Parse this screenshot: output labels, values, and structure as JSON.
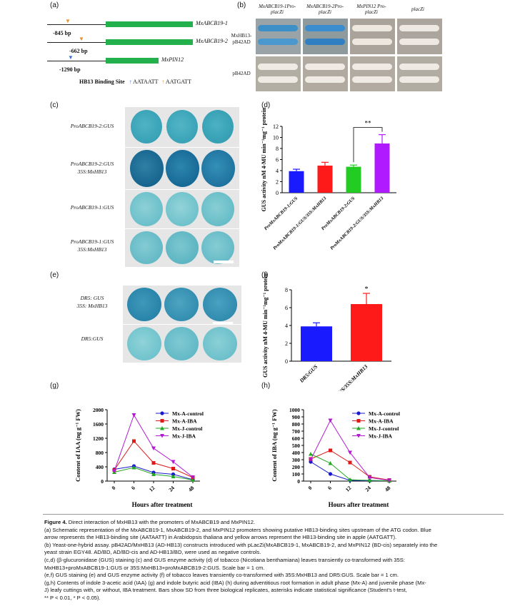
{
  "panel_labels": {
    "a": "(a)",
    "b": "(b)",
    "c": "(c)",
    "d": "(d)",
    "e": "(e)",
    "f": "(f)",
    "g": "(g)",
    "h": "(h)"
  },
  "panel_a": {
    "genes": [
      {
        "name": "MxABCB19-1",
        "position_bp": "-845 bp",
        "site": "AATGATT"
      },
      {
        "name": "MxABCB19-2",
        "position_bp": "-662 bp",
        "site": "AATGATT"
      },
      {
        "name": "MxPIN12",
        "position_bp": "-1290 bp",
        "site": "AATAATT"
      }
    ],
    "legend_title": "HB13 Binding Site",
    "legend_blue": "AATAATT",
    "legend_orange": "AATGATT",
    "colors": {
      "gene_box": "#22b14c",
      "blue_arrow": "#3b6fd4",
      "orange_arrow": "#e8912d"
    }
  },
  "panel_b": {
    "columns": [
      "MxABCB19-1Pro-placZi",
      "MxABCB19-2Pro-placZi",
      "MxPIN12 Pro-placZi",
      "placZi"
    ],
    "column_lines": [
      [
        "MxABCB19-1Pro-",
        "placZi"
      ],
      [
        "MxABCB19-2Pro-",
        "placZi"
      ],
      [
        "MxPIN12 Pro-",
        "placZi"
      ],
      [
        "placZi"
      ]
    ],
    "rows": [
      [
        "MxHB13-",
        "pB42AD"
      ],
      [
        "pB42AD"
      ]
    ]
  },
  "panel_c": {
    "rows": [
      [
        "ProABCB19-2:GUS"
      ],
      [
        "ProABCB19-2:GUS",
        "35S:MxHB13"
      ],
      [
        "ProABCB19-1:GUS"
      ],
      [
        "ProABCB19-1:GUS",
        "35S:MxHB13"
      ]
    ]
  },
  "panel_e": {
    "rows": [
      [
        "DR5: GUS",
        "35S: MxHB13"
      ],
      [
        "DR5:GUS"
      ]
    ]
  },
  "chart_data": [
    {
      "id": "d",
      "type": "bar",
      "ylabel": "GUS activity nM 4-MU min⁻¹mg⁻¹ protein",
      "ylim": [
        0,
        12
      ],
      "yticks": [
        0,
        2,
        4,
        6,
        8,
        10,
        12
      ],
      "categories": [
        "ProMxABCB19-1:GUS",
        "ProMxABCB19-1:GUS/35S:MxHB13",
        "ProMxABCB19-2:GUS",
        "ProMxABCB19-2:GUS/35S:MxHB13"
      ],
      "values": [
        3.9,
        4.9,
        4.7,
        8.9
      ],
      "errors": [
        0.35,
        0.6,
        0.3,
        1.6
      ],
      "colors": [
        "#1a1aff",
        "#ff1a1a",
        "#22cc22",
        "#b01aff"
      ],
      "significance": "**"
    },
    {
      "id": "f",
      "type": "bar",
      "ylabel": "GUS activity nM 4-MU min⁻¹mg⁻¹ protein",
      "ylim": [
        0,
        8
      ],
      "yticks": [
        0,
        2,
        4,
        6,
        8
      ],
      "categories": [
        "DR5:GUS",
        "DR5:GUS/35S:MxHB13"
      ],
      "values": [
        3.9,
        6.4
      ],
      "errors": [
        0.4,
        1.2
      ],
      "colors": [
        "#1a1aff",
        "#ff1a1a"
      ],
      "significance": "*"
    },
    {
      "id": "g",
      "type": "line",
      "ylabel": "Content of IAA (ng g⁻¹ FW)",
      "xlabel": "Hours after treatment",
      "x": [
        0,
        6,
        12,
        24,
        48
      ],
      "ylim": [
        0,
        2000
      ],
      "yticks": [
        0,
        400,
        800,
        1200,
        1600,
        2000
      ],
      "series": [
        {
          "name": "Mx-A-control",
          "color": "#1a1acc",
          "marker": "circle",
          "values": [
            330,
            420,
            240,
            190,
            40
          ]
        },
        {
          "name": "Mx-A-IBA",
          "color": "#dd1a1a",
          "marker": "square",
          "values": [
            310,
            1120,
            510,
            350,
            100
          ]
        },
        {
          "name": "Mx-J-control",
          "color": "#22aa22",
          "marker": "triangle",
          "values": [
            250,
            380,
            190,
            130,
            30
          ]
        },
        {
          "name": "Mx-J-IBA",
          "color": "#b01ad0",
          "marker": "triangle-down",
          "values": [
            280,
            1850,
            920,
            540,
            110
          ]
        }
      ]
    },
    {
      "id": "h",
      "type": "line",
      "ylabel": "Content of IBA (ng g⁻¹ FW)",
      "xlabel": "Hours after treatment",
      "x": [
        0,
        6,
        12,
        24,
        48
      ],
      "ylim": [
        0,
        1000
      ],
      "yticks": [
        0,
        100,
        200,
        300,
        400,
        500,
        600,
        700,
        800,
        900,
        1000
      ],
      "series": [
        {
          "name": "Mx-A-control",
          "color": "#1a1acc",
          "marker": "circle",
          "values": [
            270,
            100,
            10,
            5,
            5
          ]
        },
        {
          "name": "Mx-A-IBA",
          "color": "#dd1a1a",
          "marker": "square",
          "values": [
            310,
            430,
            260,
            60,
            15
          ]
        },
        {
          "name": "Mx-J-control",
          "color": "#22aa22",
          "marker": "triangle",
          "values": [
            380,
            250,
            20,
            10,
            5
          ]
        },
        {
          "name": "Mx-J-IBA",
          "color": "#b01ad0",
          "marker": "triangle-down",
          "values": [
            300,
            850,
            400,
            50,
            10
          ]
        }
      ]
    }
  ],
  "caption": {
    "title": "Figure 4.",
    "title_text": "Direct interaction of MxHB13 with the promoters of MxABCB19 and MxPIN12.",
    "lines": [
      "(a) Schematic representation of the MxABCB19-1, MxABCB19-2, and MxPIN12 promoters showing putative HB13-binding sites upstream of the ATG codon. Blue",
      "arrow represents the HB13-binding site (AATAATT) in Arabidopsis thaliana and yellow arrows represent the HB13-binding site in apple (AATGATT).",
      "(b) Yeast-one-hybrid assay. pB42AD/MxHB13 (AD-HB13) constructs introduced with pLacZi(MxABCB19-1, MxABCB19-2, and MxPIN12 (BD-cis) separately into the",
      "yeast strain EGY48. AD/BD, AD/BD-cis and AD-HB13/BD, were used as negative controls.",
      "(c,d) (β-glucuronidase (GUS) staining (c) and GUS enzyme activity (d) of tobacco (Nicotiana benthamiana) leaves transiently co-transformed with 35S:",
      "MxHB13+proMxABCB19-1:GUS or 35S:MxHB13+proMxABCB19-2:GUS. Scale bar = 1 cm.",
      "(e,f) GUS staining (e) and GUS enzyme activity (f) of tobacco leaves transiently co-transformed with 35S:MxHB13 and DR5:GUS. Scale bar = 1 cm.",
      "(g,h) Contents of indole 3-acetic acid (IAA) (g) and indole butyric acid (IBA) (h) during adventitious root formation in adult phase (Mx-A) and juvenile phase (Mx-",
      "J) leafy cuttings with, or without, IBA treatment. Bars show SD from three biological replicates, asterisks indicate statistical significance (Student's t-test,",
      "** P < 0.01, * P < 0.05)."
    ]
  }
}
